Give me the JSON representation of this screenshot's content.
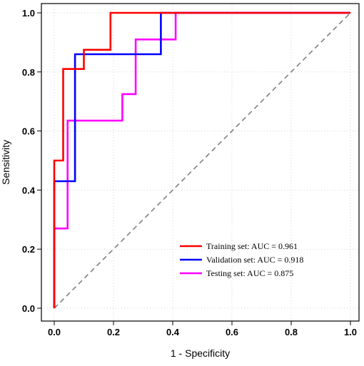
{
  "chart_data": {
    "type": "line",
    "xlabel": "1 - Specificity",
    "ylabel": "Sensitivity",
    "xlim": [
      0,
      1
    ],
    "ylim": [
      0,
      1
    ],
    "xticks": [
      "0.0",
      "0.2",
      "0.4",
      "0.6",
      "0.8",
      "1.0"
    ],
    "yticks": [
      "0.0",
      "0.2",
      "0.4",
      "0.6",
      "0.8",
      "1.0"
    ],
    "grid": true,
    "legend_position": "bottom-right",
    "reference_line": {
      "style": "dashed",
      "color": "#808080",
      "x": [
        0,
        1
      ],
      "y": [
        0,
        1
      ]
    },
    "series": [
      {
        "name": "Training set: AUC = 0.961",
        "color": "#ff0000",
        "x": [
          0,
          0,
          0.03,
          0.03,
          0.1,
          0.1,
          0.19,
          0.19,
          1
        ],
        "y": [
          0,
          0.5,
          0.5,
          0.81,
          0.81,
          0.875,
          0.875,
          1.0,
          1.0
        ]
      },
      {
        "name": "Validation set: AUC = 0.918",
        "color": "#0000ff",
        "x": [
          0,
          0,
          0.07,
          0.07,
          0.36,
          0.36,
          1
        ],
        "y": [
          0,
          0.43,
          0.43,
          0.86,
          0.86,
          1.0,
          1.0
        ]
      },
      {
        "name": "Testing set: AUC = 0.875",
        "color": "#ff00ff",
        "x": [
          0,
          0,
          0.045,
          0.045,
          0.23,
          0.23,
          0.275,
          0.275,
          0.41,
          0.41,
          1
        ],
        "y": [
          0,
          0.27,
          0.27,
          0.635,
          0.635,
          0.725,
          0.725,
          0.91,
          0.91,
          1.0,
          1.0
        ]
      }
    ]
  }
}
